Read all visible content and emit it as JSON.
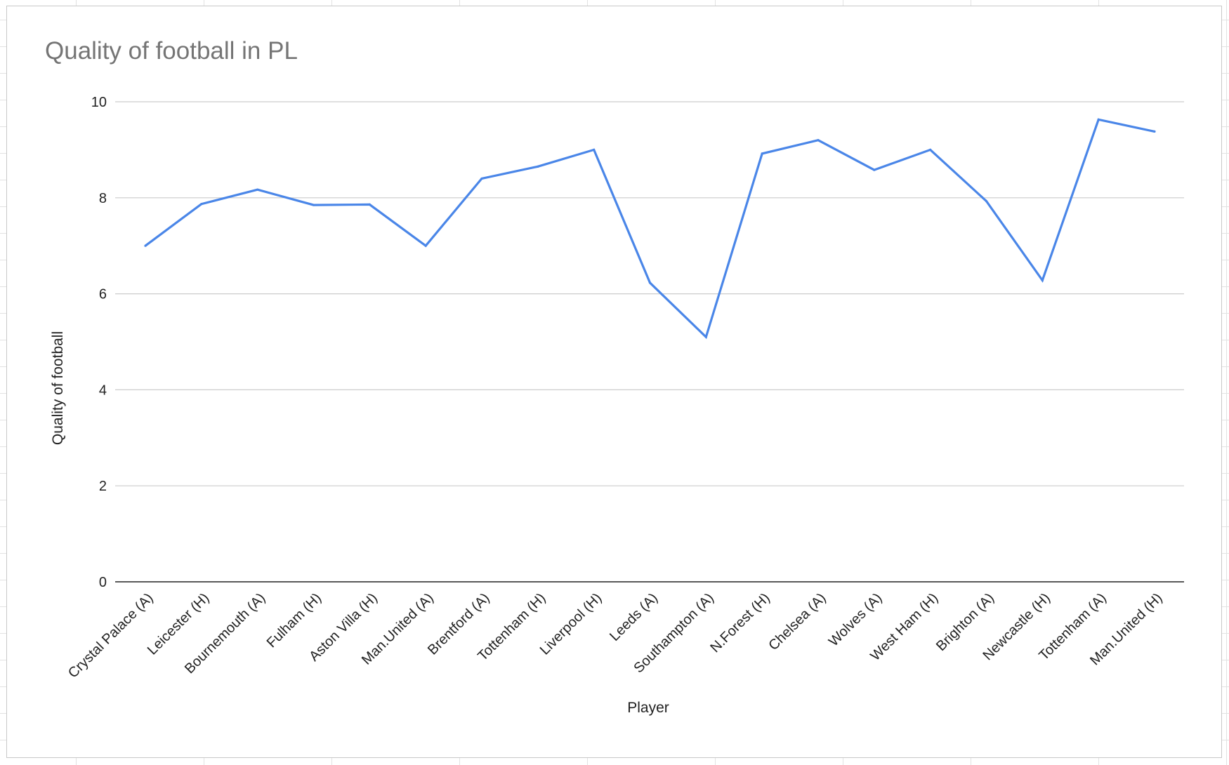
{
  "chart_data": {
    "type": "line",
    "title": "Quality of football in PL",
    "xlabel": "Player",
    "ylabel": "Quality of football",
    "ylim": [
      0,
      10
    ],
    "yticks": [
      "0",
      "2",
      "4",
      "6",
      "8",
      "10"
    ],
    "grid": true,
    "legend": "none",
    "categories": [
      "Crystal Palace (A)",
      "Leicester (H)",
      "Bournemouth (A)",
      "Fulham (H)",
      "Aston Villa (H)",
      "Man.United (A)",
      "Brentford (A)",
      "Tottenham (H)",
      "Liverpool (H)",
      "Leeds (A)",
      "Southampton (A)",
      "N.Forest (H)",
      "Chelsea (A)",
      "Wolves (A)",
      "West Ham (H)",
      "Brighton (A)",
      "Newcastle (H)",
      "Tottenham (A)",
      "Man.United (H)"
    ],
    "series": [
      {
        "color": "#4a86e8",
        "values": [
          7.0,
          7.87,
          8.17,
          7.85,
          7.86,
          7.0,
          8.4,
          8.65,
          9.0,
          6.23,
          5.1,
          8.92,
          9.2,
          8.58,
          9.0,
          7.93,
          6.28,
          9.63,
          9.38
        ]
      }
    ],
    "colors": {
      "line": "#4a86e8",
      "grid": "#cccccc",
      "axis": "#222222",
      "title": "#757575"
    }
  }
}
